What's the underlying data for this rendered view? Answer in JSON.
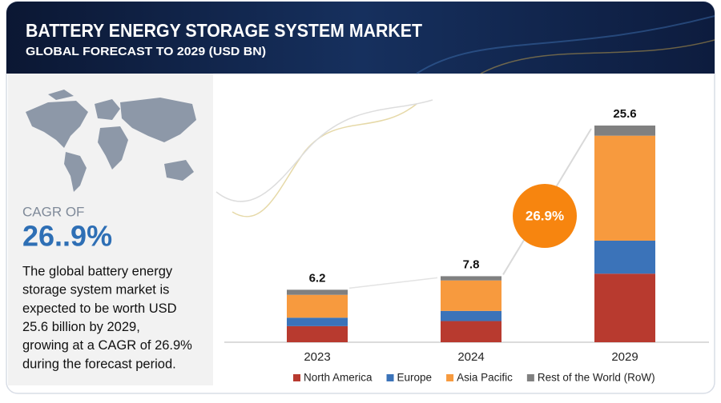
{
  "header": {
    "title": "BATTERY ENERGY STORAGE SYSTEM  MARKET",
    "subtitle": "GLOBAL FORECAST TO 2029 (USD BN)"
  },
  "side_panel": {
    "cagr_label": "CAGR OF",
    "cagr_value": "26..9%",
    "description": [
      "The global battery energy",
      "storage system market is",
      "expected to be worth USD",
      "25.6 billion by 2029,",
      "growing at a CAGR of 26.9%",
      "during the forecast period."
    ]
  },
  "chart_data": {
    "type": "stacked_bar",
    "categories": [
      "2023",
      "2024",
      "2029"
    ],
    "series": [
      {
        "name": "North America",
        "color": "#b83a2f",
        "values": [
          1.9,
          2.5,
          8.1
        ]
      },
      {
        "name": "Europe",
        "color": "#3b73b9",
        "values": [
          1.0,
          1.2,
          3.9
        ]
      },
      {
        "name": "Asia Pacific",
        "color": "#f79a3e",
        "values": [
          2.7,
          3.6,
          12.4
        ]
      },
      {
        "name": "Rest of the World (RoW)",
        "color": "#808080",
        "values": [
          0.6,
          0.5,
          1.2
        ]
      }
    ],
    "total_labels": [
      6.2,
      7.8,
      25.6
    ],
    "cagr_annotation": "26.9%",
    "legend": "bottom"
  }
}
